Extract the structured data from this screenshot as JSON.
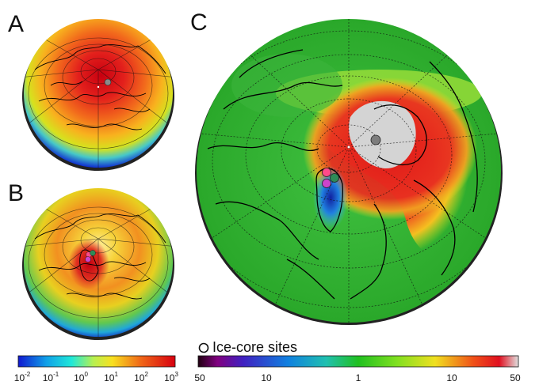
{
  "panels": {
    "a": {
      "label": "A"
    },
    "b": {
      "label": "B"
    },
    "c": {
      "label": "C"
    }
  },
  "legend": {
    "ice_core_label": "Ice-core sites"
  },
  "colorbar_left": {
    "ticks": [
      {
        "base": "10",
        "exp": "-2"
      },
      {
        "base": "10",
        "exp": "-1"
      },
      {
        "base": "10",
        "exp": "0"
      },
      {
        "base": "10",
        "exp": "1"
      },
      {
        "base": "10",
        "exp": "2"
      },
      {
        "base": "10",
        "exp": "3"
      }
    ]
  },
  "colorbar_right": {
    "ticks": [
      "50",
      "10",
      "1",
      "10",
      "50"
    ]
  },
  "colors": {
    "hot": "#e0141e",
    "green": "#2db52d",
    "gray_site": "#7d7d7d",
    "site_green": "#2e8b57",
    "site_magenta": "#cc44cc",
    "site_pink": "#ff4a8a"
  }
}
